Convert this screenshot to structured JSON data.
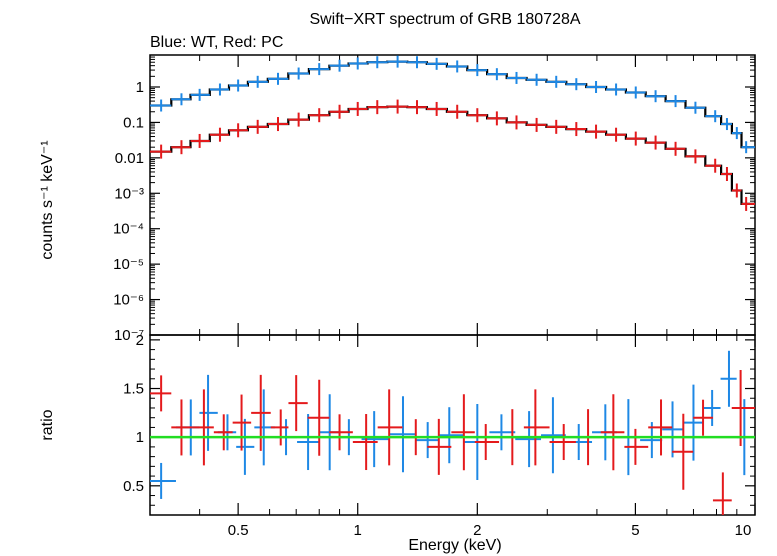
{
  "chart_data": [
    {
      "type": "scatter",
      "title": "Swift−XRT spectrum of GRB 180728A",
      "subtitle": "Blue: WT, Red: PC",
      "ylabel": "counts s⁻¹ keV⁻¹",
      "xscale": "log",
      "yscale": "log",
      "xlim": [
        0.3,
        10
      ],
      "ylim": [
        1e-07,
        8
      ],
      "y_tick_labels": [
        "1",
        "0.1",
        "0.01",
        "10⁻³",
        "10⁻⁴",
        "10⁻⁵",
        "10⁻⁶",
        "10⁻⁷"
      ],
      "series": [
        {
          "name": "WT",
          "color": "#1e88e5",
          "x": [
            0.32,
            0.36,
            0.4,
            0.45,
            0.5,
            0.56,
            0.63,
            0.71,
            0.8,
            0.9,
            1.0,
            1.12,
            1.26,
            1.41,
            1.58,
            1.78,
            2.0,
            2.24,
            2.51,
            2.82,
            3.16,
            3.55,
            3.98,
            4.47,
            5.01,
            5.62,
            6.31,
            7.08,
            7.94,
            8.5,
            9.0,
            9.5
          ],
          "y": [
            0.3,
            0.45,
            0.6,
            0.85,
            1.1,
            1.4,
            1.7,
            2.4,
            3.2,
            4.0,
            4.6,
            5.0,
            5.2,
            5.0,
            4.5,
            3.8,
            3.0,
            2.3,
            1.8,
            1.6,
            1.4,
            1.2,
            1.0,
            0.85,
            0.7,
            0.55,
            0.4,
            0.26,
            0.15,
            0.09,
            0.05,
            0.02
          ]
        },
        {
          "name": "PC",
          "color": "#e41a1c",
          "x": [
            0.32,
            0.36,
            0.4,
            0.45,
            0.5,
            0.56,
            0.63,
            0.71,
            0.8,
            0.9,
            1.0,
            1.12,
            1.26,
            1.41,
            1.58,
            1.78,
            2.0,
            2.24,
            2.51,
            2.82,
            3.16,
            3.55,
            3.98,
            4.47,
            5.01,
            5.62,
            6.31,
            7.08,
            7.94,
            8.5,
            9.0,
            9.5
          ],
          "y": [
            0.015,
            0.02,
            0.03,
            0.045,
            0.06,
            0.075,
            0.09,
            0.12,
            0.16,
            0.2,
            0.24,
            0.27,
            0.28,
            0.27,
            0.24,
            0.2,
            0.16,
            0.13,
            0.1,
            0.085,
            0.075,
            0.065,
            0.055,
            0.045,
            0.035,
            0.027,
            0.018,
            0.011,
            0.006,
            0.0035,
            0.0012,
            0.0005
          ]
        }
      ],
      "model_color": "#000000"
    },
    {
      "type": "scatter",
      "xlabel": "Energy (keV)",
      "ylabel": "ratio",
      "xscale": "log",
      "xlim": [
        0.3,
        10
      ],
      "ylim": [
        0.2,
        2.05
      ],
      "x_tick_labels": [
        "0.5",
        "1",
        "2",
        "5",
        "10"
      ],
      "y_tick_labels": [
        "0.5",
        "1",
        "1.5",
        "2"
      ],
      "reference_line": {
        "y": 1,
        "color": "#22dd22"
      },
      "series": [
        {
          "name": "WT",
          "color": "#1e88e5",
          "x": [
            0.32,
            0.38,
            0.42,
            0.47,
            0.52,
            0.58,
            0.66,
            0.75,
            0.85,
            0.95,
            1.1,
            1.3,
            1.5,
            1.7,
            2.0,
            2.3,
            2.7,
            3.1,
            3.6,
            4.2,
            4.8,
            5.5,
            6.2,
            7.0,
            7.8,
            8.6,
            9.4
          ],
          "y": [
            0.55,
            1.1,
            1.25,
            1.05,
            0.9,
            1.1,
            1.0,
            0.95,
            1.05,
            1.0,
            0.98,
            1.03,
            0.97,
            1.02,
            0.95,
            1.05,
            0.98,
            1.02,
            0.95,
            1.05,
            1.0,
            0.97,
            1.08,
            1.15,
            1.3,
            1.6,
            1.0
          ]
        },
        {
          "name": "PC",
          "color": "#e41a1c",
          "x": [
            0.32,
            0.36,
            0.41,
            0.46,
            0.51,
            0.57,
            0.64,
            0.7,
            0.8,
            0.9,
            1.05,
            1.2,
            1.4,
            1.6,
            1.85,
            2.1,
            2.45,
            2.8,
            3.3,
            3.8,
            4.4,
            5.0,
            5.8,
            6.6,
            7.4,
            8.3,
            9.2
          ],
          "y": [
            1.45,
            1.1,
            1.1,
            1.05,
            1.15,
            1.25,
            1.1,
            1.35,
            1.2,
            1.05,
            0.95,
            1.1,
            1.0,
            0.9,
            1.05,
            0.95,
            1.0,
            1.1,
            0.95,
            1.0,
            1.05,
            0.9,
            1.1,
            0.85,
            1.2,
            0.35,
            1.3
          ]
        }
      ]
    }
  ]
}
